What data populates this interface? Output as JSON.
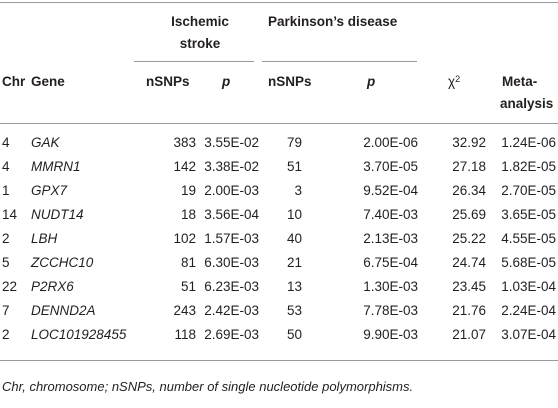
{
  "header": {
    "group_ischemic_line1": "Ischemic",
    "group_ischemic_line2": "stroke",
    "group_parkinson": "Parkinson’s disease",
    "col_chr": "Chr",
    "col_gene": "Gene",
    "col_nsnps_is": "nSNPs",
    "col_p_is": "p",
    "col_nsnps_pd": "nSNPs",
    "col_p_pd": "p",
    "col_chi": "χ",
    "col_chi_sup": "2",
    "col_meta_line1": "Meta-",
    "col_meta_line2": "analysis"
  },
  "rows": [
    {
      "chr": "4",
      "gene": "GAK",
      "nsnps_is": "383",
      "p_is": "3.55E-02",
      "nsnps_pd": "79",
      "p_pd": "2.00E-06",
      "chi": "32.92",
      "meta": "1.24E-06"
    },
    {
      "chr": "4",
      "gene": "MMRN1",
      "nsnps_is": "142",
      "p_is": "3.38E-02",
      "nsnps_pd": "51",
      "p_pd": "3.70E-05",
      "chi": "27.18",
      "meta": "1.82E-05"
    },
    {
      "chr": "1",
      "gene": "GPX7",
      "nsnps_is": "19",
      "p_is": "2.00E-03",
      "nsnps_pd": "3",
      "p_pd": "9.52E-04",
      "chi": "26.34",
      "meta": "2.70E-05"
    },
    {
      "chr": "14",
      "gene": "NUDT14",
      "nsnps_is": "18",
      "p_is": "3.56E-04",
      "nsnps_pd": "10",
      "p_pd": "7.40E-03",
      "chi": "25.69",
      "meta": "3.65E-05"
    },
    {
      "chr": "2",
      "gene": "LBH",
      "nsnps_is": "102",
      "p_is": "1.57E-03",
      "nsnps_pd": "40",
      "p_pd": "2.13E-03",
      "chi": "25.22",
      "meta": "4.55E-05"
    },
    {
      "chr": "5",
      "gene": "ZCCHC10",
      "nsnps_is": "81",
      "p_is": "6.30E-03",
      "nsnps_pd": "21",
      "p_pd": "6.75E-04",
      "chi": "24.74",
      "meta": "5.68E-05"
    },
    {
      "chr": "22",
      "gene": "P2RX6",
      "nsnps_is": "51",
      "p_is": "6.23E-03",
      "nsnps_pd": "13",
      "p_pd": "1.30E-03",
      "chi": "23.45",
      "meta": "1.03E-04"
    },
    {
      "chr": "7",
      "gene": "DENND2A",
      "nsnps_is": "243",
      "p_is": "2.42E-03",
      "nsnps_pd": "53",
      "p_pd": "7.78E-03",
      "chi": "21.76",
      "meta": "2.24E-04"
    },
    {
      "chr": "2",
      "gene": "LOC101928455",
      "nsnps_is": "118",
      "p_is": "2.69E-03",
      "nsnps_pd": "50",
      "p_pd": "9.90E-03",
      "chi": "21.07",
      "meta": "3.07E-04"
    }
  ],
  "footnote": "Chr, chromosome; nSNPs, number of single nucleotide polymorphisms."
}
